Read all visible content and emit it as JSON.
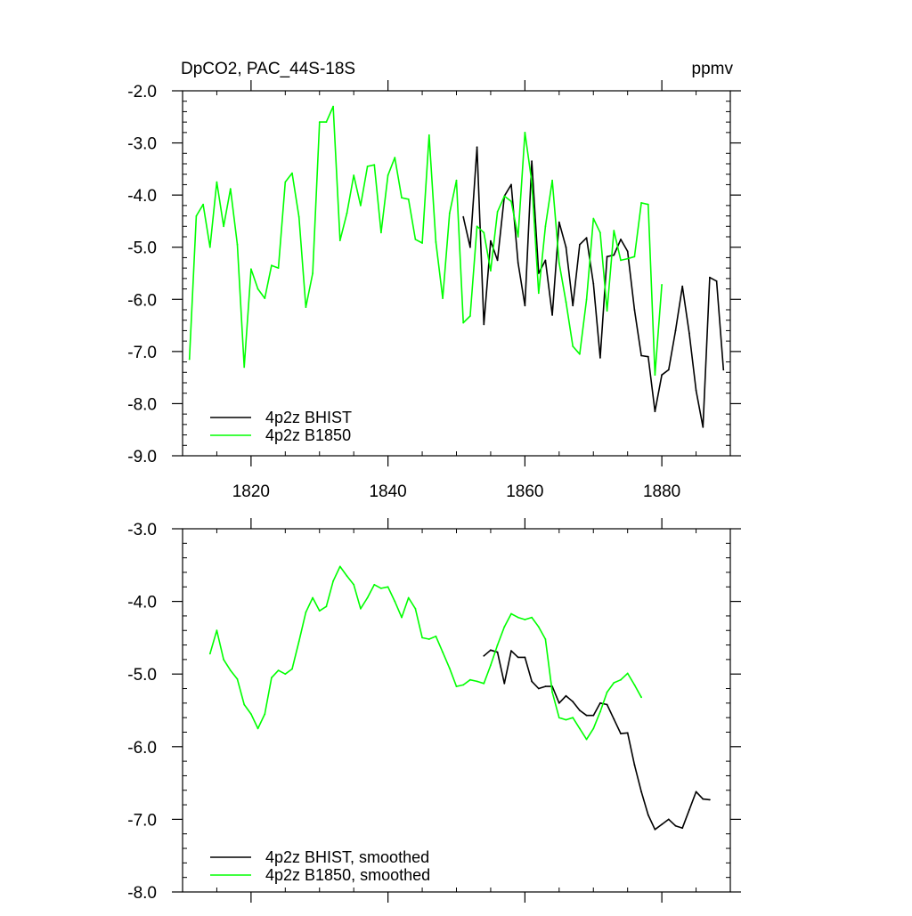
{
  "colors": {
    "bhist": "#000000",
    "b1850": "#00ff00"
  },
  "chart_data": [
    {
      "type": "line",
      "title": "DpCO2, PAC_44S-18S",
      "units": "ppmv",
      "xlim": [
        1810,
        1890
      ],
      "ylim": [
        -9.0,
        -2.0
      ],
      "xticks": [
        1820,
        1840,
        1860,
        1880
      ],
      "xtick_labels": [
        "1820",
        "1840",
        "1860",
        "1880"
      ],
      "yticks": [
        -2.0,
        -3.0,
        -4.0,
        -5.0,
        -6.0,
        -7.0,
        -8.0,
        -9.0
      ],
      "ytick_labels": [
        "-2.0",
        "-3.0",
        "-4.0",
        "-5.0",
        "-6.0",
        "-7.0",
        "-8.0",
        "-9.0"
      ],
      "legend_position": "bottom-left",
      "series": [
        {
          "name": "4p2z BHIST",
          "color": "#000000",
          "x": [
            1851,
            1852,
            1853,
            1854,
            1855,
            1856,
            1857,
            1858,
            1859,
            1860,
            1861,
            1862,
            1863,
            1864,
            1865,
            1866,
            1867,
            1868,
            1869,
            1870,
            1871,
            1872,
            1873,
            1874,
            1875,
            1876,
            1877,
            1878,
            1879,
            1880,
            1881,
            1882,
            1883,
            1884,
            1885,
            1886,
            1887,
            1888,
            1889
          ],
          "y": [
            -4.42,
            -5.0,
            -3.08,
            -6.48,
            -4.88,
            -5.25,
            -4.02,
            -3.8,
            -5.3,
            -6.12,
            -3.35,
            -5.5,
            -5.25,
            -6.3,
            -4.52,
            -5.0,
            -6.12,
            -4.95,
            -4.82,
            -5.7,
            -7.12,
            -5.18,
            -5.15,
            -4.85,
            -5.08,
            -6.2,
            -7.08,
            -7.1,
            -8.15,
            -7.45,
            -7.35,
            -6.6,
            -5.75,
            -6.65,
            -7.75,
            -8.45,
            -5.58,
            -5.65,
            -7.35
          ]
        },
        {
          "name": "4p2z B1850",
          "color": "#00ff00",
          "x": [
            1811,
            1812,
            1813,
            1814,
            1815,
            1816,
            1817,
            1818,
            1819,
            1820,
            1821,
            1822,
            1823,
            1824,
            1825,
            1826,
            1827,
            1828,
            1829,
            1830,
            1831,
            1832,
            1833,
            1834,
            1835,
            1836,
            1837,
            1838,
            1839,
            1840,
            1841,
            1842,
            1843,
            1844,
            1845,
            1846,
            1847,
            1848,
            1849,
            1850,
            1851,
            1852,
            1853,
            1854,
            1855,
            1856,
            1857,
            1858,
            1859,
            1860,
            1861,
            1862,
            1863,
            1864,
            1865,
            1866,
            1867,
            1868,
            1869,
            1870,
            1871,
            1872,
            1873,
            1874,
            1875,
            1876,
            1877,
            1878,
            1879,
            1880
          ],
          "y": [
            -7.15,
            -4.4,
            -4.18,
            -5.0,
            -3.75,
            -4.6,
            -3.88,
            -4.95,
            -7.3,
            -5.42,
            -5.8,
            -5.98,
            -5.35,
            -5.4,
            -3.75,
            -3.58,
            -4.42,
            -6.15,
            -5.5,
            -2.6,
            -2.6,
            -2.3,
            -4.87,
            -4.35,
            -3.62,
            -4.2,
            -3.45,
            -3.42,
            -4.72,
            -3.62,
            -3.28,
            -4.05,
            -4.08,
            -4.85,
            -4.92,
            -2.85,
            -4.9,
            -5.98,
            -4.35,
            -3.72,
            -6.45,
            -6.32,
            -4.6,
            -4.72,
            -5.45,
            -4.32,
            -4.02,
            -4.12,
            -4.8,
            -2.8,
            -3.75,
            -5.88,
            -4.6,
            -3.72,
            -5.3,
            -6.05,
            -6.9,
            -7.05,
            -6.0,
            -4.45,
            -4.72,
            -6.22,
            -4.68,
            -5.25,
            -5.22,
            -5.18,
            -4.15,
            -4.18,
            -7.45,
            -5.72
          ]
        }
      ]
    },
    {
      "type": "line",
      "xlim": [
        1810,
        1890
      ],
      "ylim": [
        -8.0,
        -3.0
      ],
      "xticks": [
        1820,
        1840,
        1860,
        1880
      ],
      "yticks": [
        -3.0,
        -4.0,
        -5.0,
        -6.0,
        -7.0,
        -8.0
      ],
      "ytick_labels": [
        "-3.0",
        "-4.0",
        "-5.0",
        "-6.0",
        "-7.0",
        "-8.0"
      ],
      "legend_position": "bottom-left",
      "series": [
        {
          "name": "4p2z BHIST, smoothed",
          "color": "#000000",
          "x": [
            1854,
            1855,
            1856,
            1857,
            1858,
            1859,
            1860,
            1861,
            1862,
            1863,
            1864,
            1865,
            1866,
            1867,
            1868,
            1869,
            1870,
            1871,
            1872,
            1873,
            1874,
            1875,
            1876,
            1877,
            1878,
            1879,
            1880,
            1881,
            1882,
            1883,
            1884,
            1885,
            1886,
            1887
          ],
          "y": [
            -4.75,
            -4.67,
            -4.7,
            -5.13,
            -4.68,
            -4.77,
            -4.77,
            -5.1,
            -5.2,
            -5.17,
            -5.17,
            -5.4,
            -5.3,
            -5.38,
            -5.5,
            -5.57,
            -5.57,
            -5.4,
            -5.42,
            -5.62,
            -5.82,
            -5.81,
            -6.25,
            -6.62,
            -6.94,
            -7.14,
            -7.07,
            -7.0,
            -7.09,
            -7.12,
            -6.87,
            -6.62,
            -6.72,
            -6.73
          ]
        },
        {
          "name": "4p2z B1850, smoothed",
          "color": "#00ff00",
          "x": [
            1814,
            1815,
            1816,
            1817,
            1818,
            1819,
            1820,
            1821,
            1822,
            1823,
            1824,
            1825,
            1826,
            1827,
            1828,
            1829,
            1830,
            1831,
            1832,
            1833,
            1834,
            1835,
            1836,
            1837,
            1838,
            1839,
            1840,
            1841,
            1842,
            1843,
            1844,
            1845,
            1846,
            1847,
            1848,
            1849,
            1850,
            1851,
            1852,
            1853,
            1854,
            1855,
            1856,
            1857,
            1858,
            1859,
            1860,
            1861,
            1862,
            1863,
            1864,
            1865,
            1866,
            1867,
            1868,
            1869,
            1870,
            1871,
            1872,
            1873,
            1874,
            1875,
            1876,
            1877
          ],
          "y": [
            -4.72,
            -4.4,
            -4.8,
            -4.95,
            -5.07,
            -5.42,
            -5.55,
            -5.75,
            -5.55,
            -5.05,
            -4.95,
            -5.0,
            -4.93,
            -4.55,
            -4.15,
            -3.95,
            -4.13,
            -4.07,
            -3.72,
            -3.52,
            -3.65,
            -3.77,
            -4.1,
            -3.95,
            -3.77,
            -3.82,
            -3.8,
            -4.0,
            -4.22,
            -3.95,
            -4.1,
            -4.5,
            -4.52,
            -4.48,
            -4.7,
            -4.92,
            -5.17,
            -5.15,
            -5.08,
            -5.1,
            -5.13,
            -4.88,
            -4.6,
            -4.35,
            -4.17,
            -4.22,
            -4.25,
            -4.22,
            -4.35,
            -4.52,
            -5.25,
            -5.6,
            -5.63,
            -5.6,
            -5.75,
            -5.9,
            -5.75,
            -5.52,
            -5.25,
            -5.12,
            -5.08,
            -4.99,
            -5.15,
            -5.32
          ]
        }
      ]
    }
  ]
}
